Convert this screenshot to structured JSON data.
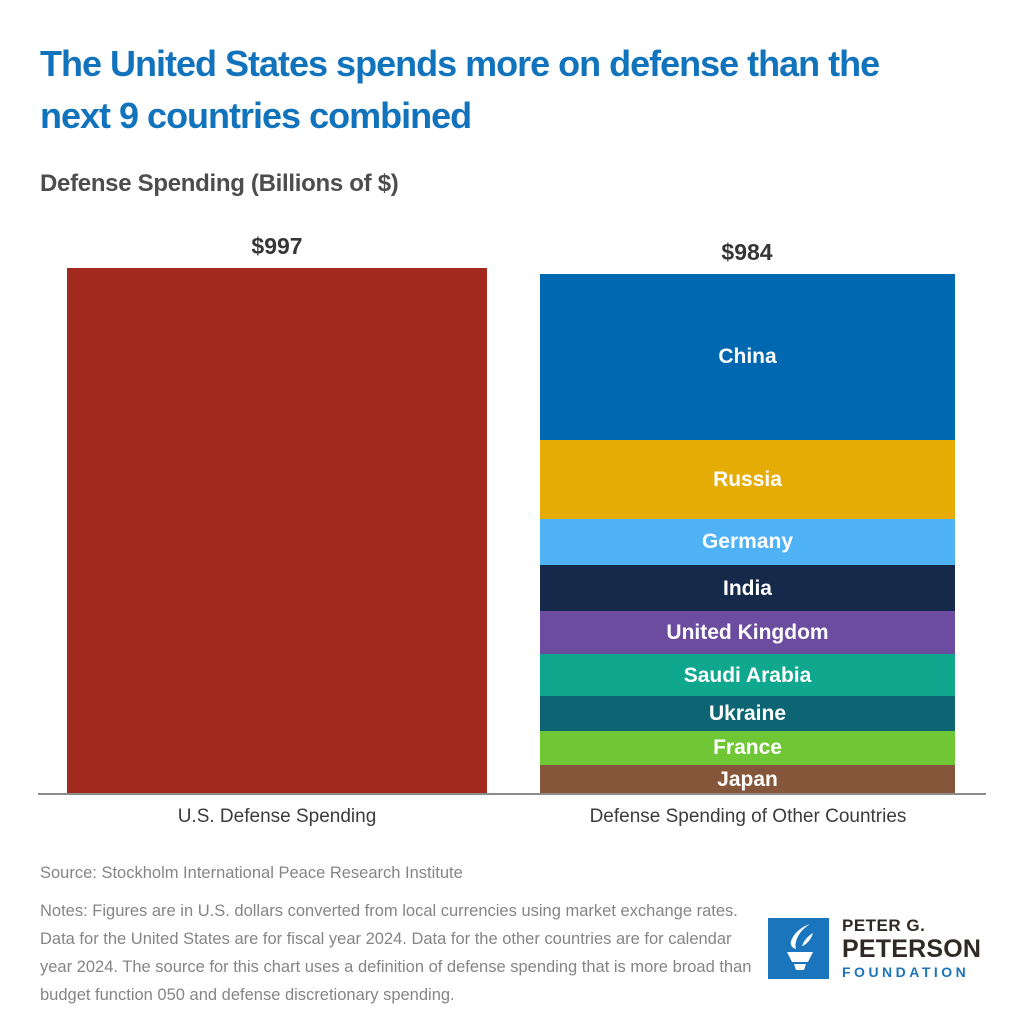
{
  "page": {
    "title": "The United States spends more on defense than the\nnext 9 countries combined",
    "subtitle": "Defense Spending (Billions of $)"
  },
  "chart_data": {
    "type": "bar",
    "subtype": "stacked-comparison",
    "title": "Defense Spending (Billions of $)",
    "unit": "billions of U.S. dollars",
    "grid": false,
    "categories": [
      "U.S. Defense Spending",
      "Defense Spending of Other Countries"
    ],
    "bars": [
      {
        "label": "U.S. Defense Spending",
        "total": 997,
        "total_label": "$997",
        "segments": [
          {
            "name": "United States",
            "value": 997,
            "color": "#A2291E",
            "label_visible": false
          }
        ]
      },
      {
        "label": "Defense Spending of Other Countries",
        "total": 984,
        "total_label": "$984",
        "segments": [
          {
            "name": "China",
            "value": 314,
            "color": "#0067B1",
            "label_visible": true
          },
          {
            "name": "Russia",
            "value": 149,
            "color": "#E6AC06",
            "label_visible": true
          },
          {
            "name": "Germany",
            "value": 88.5,
            "color": "#4FB2F5",
            "label_visible": true
          },
          {
            "name": "India",
            "value": 86.1,
            "color": "#152A4A",
            "label_visible": true
          },
          {
            "name": "United Kingdom",
            "value": 81.8,
            "color": "#6B4C9F",
            "label_visible": true
          },
          {
            "name": "Saudi Arabia",
            "value": 80.3,
            "color": "#10A78F",
            "label_visible": true
          },
          {
            "name": "Ukraine",
            "value": 64.8,
            "color": "#0D6573",
            "label_visible": true
          },
          {
            "name": "France",
            "value": 64.7,
            "color": "#70C735",
            "label_visible": true
          },
          {
            "name": "Japan",
            "value": 55.3,
            "color": "#86563A",
            "label_visible": true
          }
        ]
      }
    ]
  },
  "footer": {
    "source": "Source: Stockholm International Peace Research Institute",
    "notes": "Notes: Figures are in U.S. dollars converted from local currencies using market exchange rates. Data for the United States are for fiscal year 2024. Data for the other countries are for calendar year 2024. The source for this chart uses a definition of defense spending that is more broad than budget function 050 and defense discretionary spending."
  },
  "logo": {
    "line1": "PETER G.",
    "line2": "PETERSON",
    "line3": "FOUNDATION",
    "brand_blue": "#1B75BC",
    "brand_dark": "#2F2A26",
    "icon": "torch-icon"
  },
  "colors": {
    "title_blue": "#1273BD",
    "subtitle_gray": "#4D4D4F",
    "value_label_gray": "#363636",
    "axis_line_gray": "#8C8C8C",
    "note_gray": "#858585",
    "us_red": "#A2291E"
  }
}
